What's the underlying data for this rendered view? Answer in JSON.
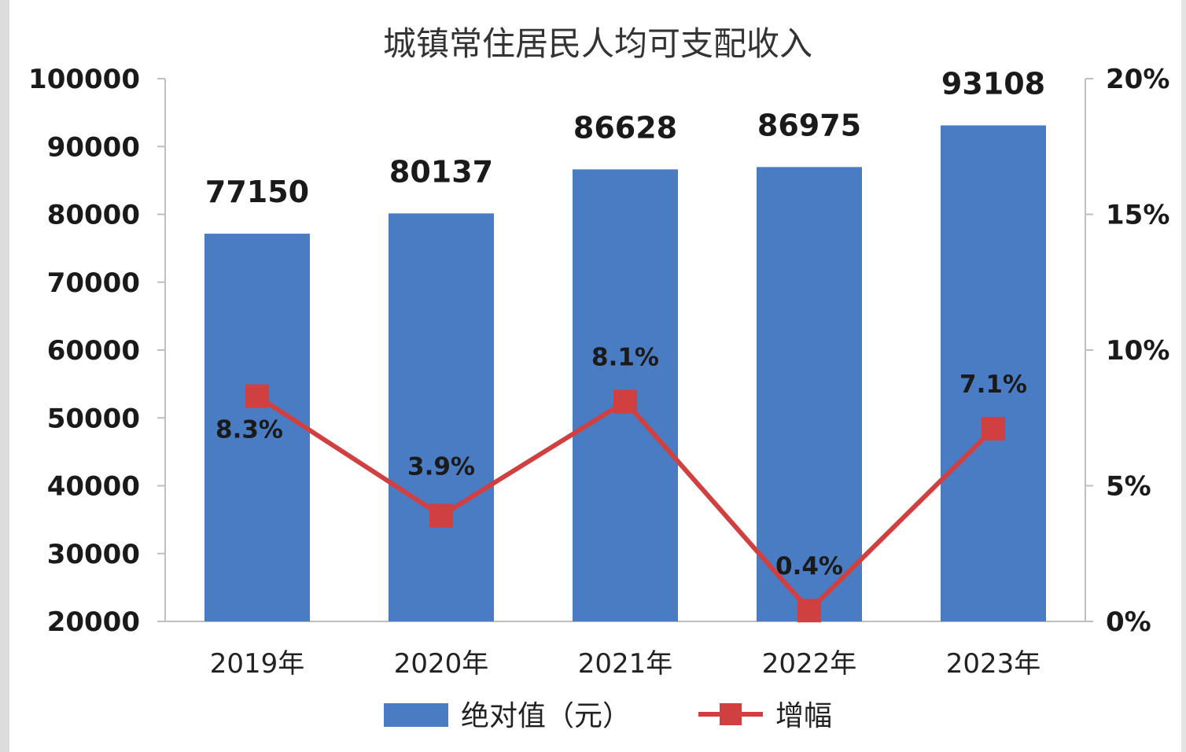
{
  "chart_data": {
    "type": "bar",
    "title": "城镇常住居民人均可支配收入",
    "categories": [
      "2019年",
      "2020年",
      "2021年",
      "2022年",
      "2023年"
    ],
    "series": [
      {
        "name": "绝对值（元）",
        "type": "bar",
        "axis": "left",
        "values": [
          77150,
          80137,
          86628,
          86975,
          93108
        ],
        "labels": [
          "77150",
          "80137",
          "86628",
          "86975",
          "93108"
        ],
        "color": "#4a7cc4"
      },
      {
        "name": "增幅",
        "type": "line",
        "axis": "right",
        "values": [
          8.3,
          3.9,
          8.1,
          0.4,
          7.1
        ],
        "labels": [
          "8.3%",
          "3.9%",
          "8.1%",
          "0.4%",
          "7.1%"
        ],
        "color": "#d04040"
      }
    ],
    "y_left": {
      "ylim": [
        20000,
        100000
      ],
      "ticks": [
        "20000",
        "30000",
        "40000",
        "50000",
        "60000",
        "70000",
        "80000",
        "90000",
        "100000"
      ]
    },
    "y_right": {
      "ylim": [
        0,
        20
      ],
      "ticks": [
        "0%",
        "5%",
        "10%",
        "15%",
        "20%"
      ]
    },
    "legend": "bottom",
    "grid": false
  }
}
